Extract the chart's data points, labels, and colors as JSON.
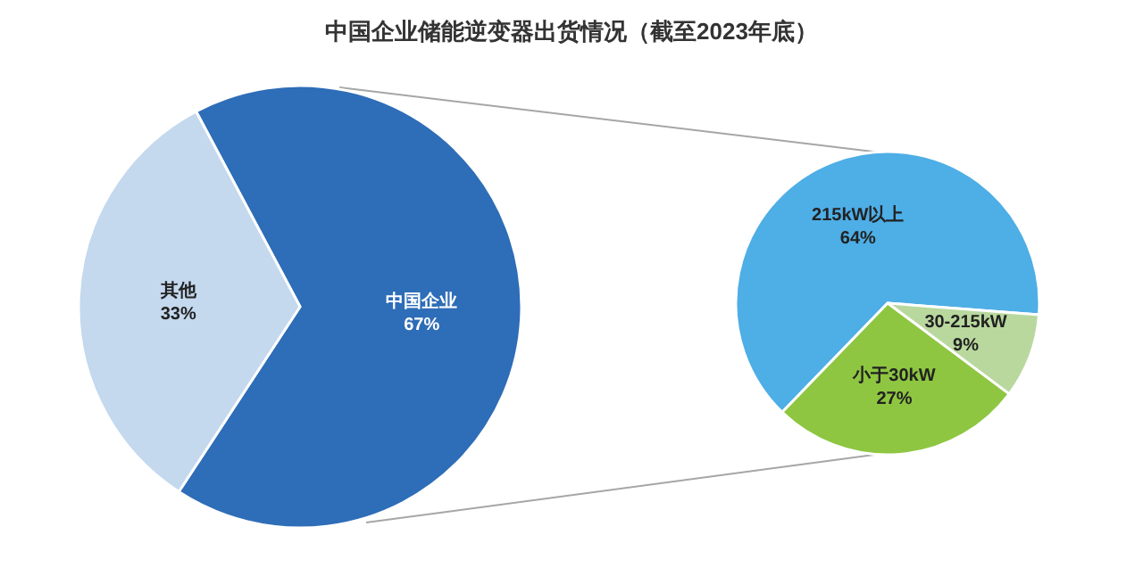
{
  "chart_data": [
    {
      "type": "pie",
      "title": "中国企业储能逆变器出货情况（截至2023年底）",
      "categories": [
        "中国企业",
        "其他"
      ],
      "values": [
        67,
        33
      ],
      "colors": [
        "#2e6db7",
        "#c4d8ee"
      ],
      "value_labels": [
        "67%",
        "33%"
      ]
    },
    {
      "type": "pie",
      "categories": [
        "215kW以上",
        "30-215kW",
        "小于30kW"
      ],
      "values": [
        64,
        9,
        27
      ],
      "colors": [
        "#4eaee6",
        "#b9d89e",
        "#8ec641"
      ],
      "value_labels": [
        "64%",
        "9%",
        "27%"
      ]
    }
  ]
}
